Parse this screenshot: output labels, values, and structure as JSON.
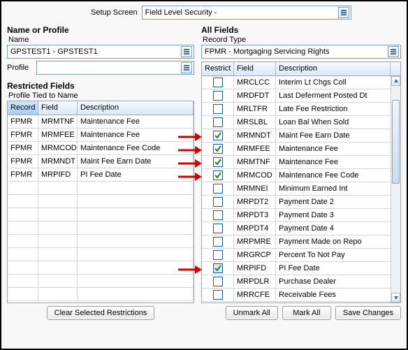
{
  "setup": {
    "label": "Setup Screen",
    "value": "Field Level Security -"
  },
  "left": {
    "title": "Name or Profile",
    "name_label": "Name",
    "name_value": "GPSTEST1 - GPSTEST1",
    "profile_label": "Profile",
    "profile_value": "",
    "restricted_title": "Restricted Fields",
    "tied_label": "Profile Tied to Name",
    "columns": {
      "c1": "Record",
      "c2": "Field",
      "c3": "Description"
    },
    "rows": [
      {
        "record": "FPMR",
        "field": "MRMTNF",
        "desc": "Maintenance Fee"
      },
      {
        "record": "FPMR",
        "field": "MRMFEE",
        "desc": "Maintenance Fee"
      },
      {
        "record": "FPMR",
        "field": "MRMCOD",
        "desc": "Maintenance Fee Code"
      },
      {
        "record": "FPMR",
        "field": "MRMNDT",
        "desc": "Maint Fee Earn Date"
      },
      {
        "record": "FPMR",
        "field": "MRPIFD",
        "desc": "PI Fee Date"
      }
    ],
    "clear_button": "Clear Selected Restrictions"
  },
  "right": {
    "title": "All Fields",
    "record_type_label": "Record Type",
    "record_type_value": "FPMR - Mortgaging Servicing Rights",
    "columns": {
      "c1": "Restrict",
      "c2": "Field",
      "c3": "Description"
    },
    "rows": [
      {
        "restrict": false,
        "sel": false,
        "field": "MRCLCC",
        "desc": "Interim Lt Chgs Coll"
      },
      {
        "restrict": false,
        "sel": false,
        "field": "MRDFDT",
        "desc": "Last Deferment Posted Dt"
      },
      {
        "restrict": false,
        "sel": false,
        "field": "MRLTFR",
        "desc": "Late Fee Restriction"
      },
      {
        "restrict": false,
        "sel": false,
        "field": "MRSLBL",
        "desc": "Loan Bal When Sold"
      },
      {
        "restrict": true,
        "sel": false,
        "field": "MRMNDT",
        "desc": "Maint Fee Earn Date",
        "arrow": true
      },
      {
        "restrict": true,
        "sel": false,
        "field": "MRMFEE",
        "desc": "Maintenance Fee",
        "arrow": true
      },
      {
        "restrict": true,
        "sel": false,
        "field": "MRMTNF",
        "desc": "Maintenance Fee",
        "arrow": true
      },
      {
        "restrict": true,
        "sel": false,
        "field": "MRMCOD",
        "desc": "Maintenance Fee Code",
        "arrow": true
      },
      {
        "restrict": false,
        "sel": false,
        "field": "MRMNEI",
        "desc": "Minimum Earned Int"
      },
      {
        "restrict": false,
        "sel": false,
        "field": "MRPDT2",
        "desc": "Payment Date 2"
      },
      {
        "restrict": false,
        "sel": false,
        "field": "MRPDT3",
        "desc": "Payment Date 3"
      },
      {
        "restrict": false,
        "sel": false,
        "field": "MRPDT4",
        "desc": "Payment Date 4"
      },
      {
        "restrict": false,
        "sel": false,
        "field": "MRPMRE",
        "desc": "Payment Made on Repo"
      },
      {
        "restrict": false,
        "sel": false,
        "field": "MRGRCP",
        "desc": "Percent To Not Pay"
      },
      {
        "restrict": true,
        "sel": true,
        "field": "MRPIFD",
        "desc": "PI Fee Date",
        "arrow": true
      },
      {
        "restrict": false,
        "sel": false,
        "field": "MRPDLR",
        "desc": "Purchase   Dealer"
      },
      {
        "restrict": false,
        "sel": false,
        "field": "MRRCFE",
        "desc": "Receivable Fees"
      }
    ],
    "buttons": {
      "unmark": "Unmark All",
      "mark": "Mark All",
      "save": "Save Changes"
    }
  },
  "colors": {
    "check_green": "#1a8a1a",
    "arrow_red": "#d10000",
    "header_sel": "#a9cdf5"
  }
}
